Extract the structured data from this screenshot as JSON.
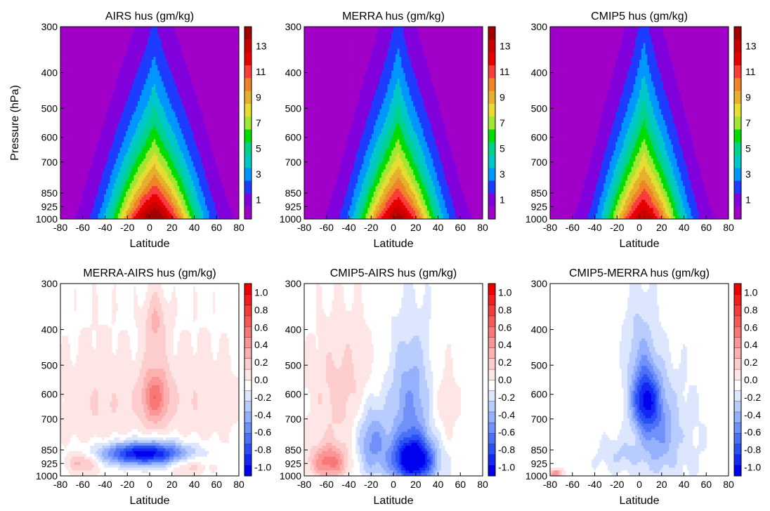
{
  "figure": {
    "y_axis_label": "Pressure (hPa)",
    "x_axis_label": "Latitude"
  },
  "chart_data": [
    {
      "type": "heatmap",
      "title": "AIRS hus (gm/kg)",
      "xlabel": "Latitude",
      "ylabel": "Pressure (hPa)",
      "xlim": [
        -80,
        80
      ],
      "ylim": [
        1000,
        300
      ],
      "x_ticks": [
        -80,
        -60,
        -40,
        -20,
        0,
        20,
        40,
        60,
        80
      ],
      "y_ticks": [
        300,
        400,
        500,
        600,
        700,
        850,
        925,
        1000
      ],
      "colorbar": {
        "ticks": [
          "1",
          "3",
          "5",
          "7",
          "9",
          "11",
          "13"
        ],
        "range": [
          0,
          15
        ]
      },
      "field": {
        "kind": "moisture",
        "peak": 15.5,
        "scale_height": 140,
        "width": 26,
        "height_boost": 0.55
      }
    },
    {
      "type": "heatmap",
      "title": "MERRA hus (gm/kg)",
      "xlabel": "Latitude",
      "ylabel": "",
      "xlim": [
        -80,
        80
      ],
      "ylim": [
        1000,
        300
      ],
      "x_ticks": [
        -80,
        -60,
        -40,
        -20,
        0,
        20,
        40,
        60,
        80
      ],
      "y_ticks": [
        300,
        400,
        500,
        600,
        700,
        850,
        925,
        1000
      ],
      "colorbar": {
        "ticks": [
          "1",
          "3",
          "5",
          "7",
          "9",
          "11",
          "13"
        ],
        "range": [
          0,
          15
        ]
      },
      "field": {
        "kind": "moisture",
        "peak": 14.6,
        "scale_height": 150,
        "width": 24,
        "height_boost": 0.65
      }
    },
    {
      "type": "heatmap",
      "title": "CMIP5 hus (gm/kg)",
      "xlabel": "Latitude",
      "ylabel": "",
      "xlim": [
        -80,
        80
      ],
      "ylim": [
        1000,
        300
      ],
      "x_ticks": [
        -80,
        -60,
        -40,
        -20,
        0,
        20,
        40,
        60,
        80
      ],
      "y_ticks": [
        300,
        400,
        500,
        600,
        700,
        850,
        925,
        1000
      ],
      "colorbar": {
        "ticks": [
          "1",
          "3",
          "5",
          "7",
          "9",
          "11",
          "13"
        ],
        "range": [
          0,
          15
        ]
      },
      "field": {
        "kind": "moisture",
        "peak": 14.2,
        "scale_height": 150,
        "width": 23,
        "height_boost": 0.7
      }
    },
    {
      "type": "heatmap",
      "title": "MERRA-AIRS hus (gm/kg)",
      "xlabel": "Latitude",
      "ylabel": "",
      "xlim": [
        -80,
        80
      ],
      "ylim": [
        1000,
        300
      ],
      "x_ticks": [
        -80,
        -60,
        -40,
        -20,
        0,
        20,
        40,
        60,
        80
      ],
      "y_ticks": [
        300,
        400,
        500,
        600,
        700,
        850,
        925,
        1000
      ],
      "colorbar": {
        "ticks": [
          "1.0",
          "0.8",
          "0.6",
          "0.4",
          "0.2",
          "0.0",
          "-0.2",
          "-0.4",
          "-0.6",
          "-0.8",
          "-1.0"
        ],
        "range": [
          -1.1,
          1.1
        ]
      },
      "field": {
        "kind": "diff",
        "blobs": [
          {
            "lat": -5,
            "p": 870,
            "slat": 28,
            "sp": 45,
            "a": -1.05
          },
          {
            "lat": 5,
            "p": 610,
            "slat": 9,
            "sp": 80,
            "a": 0.55
          },
          {
            "lat": 5,
            "p": 380,
            "slat": 7,
            "sp": 50,
            "a": 0.3
          },
          {
            "lat": -45,
            "p": 650,
            "slat": 30,
            "sp": 180,
            "a": 0.18
          },
          {
            "lat": 45,
            "p": 620,
            "slat": 28,
            "sp": 160,
            "a": 0.16
          },
          {
            "lat": -60,
            "p": 920,
            "slat": 10,
            "sp": 40,
            "a": 0.35
          },
          {
            "lat": 35,
            "p": 940,
            "slat": 12,
            "sp": 40,
            "a": 0.25
          }
        ]
      }
    },
    {
      "type": "heatmap",
      "title": "CMIP5-AIRS hus (gm/kg)",
      "xlabel": "Latitude",
      "ylabel": "",
      "xlim": [
        -80,
        80
      ],
      "ylim": [
        1000,
        300
      ],
      "x_ticks": [
        -80,
        -60,
        -40,
        -20,
        0,
        20,
        40,
        60,
        80
      ],
      "y_ticks": [
        300,
        400,
        500,
        600,
        700,
        850,
        925,
        1000
      ],
      "colorbar": {
        "ticks": [
          "1.0",
          "0.8",
          "0.6",
          "0.4",
          "0.2",
          "0.0",
          "-0.2",
          "-0.4",
          "-0.6",
          "-0.8",
          "-1.0"
        ],
        "range": [
          -1.1,
          1.1
        ]
      },
      "field": {
        "kind": "diff",
        "blobs": [
          {
            "lat": 18,
            "p": 910,
            "slat": 14,
            "sp": 90,
            "a": -1.1
          },
          {
            "lat": 15,
            "p": 650,
            "slat": 14,
            "sp": 180,
            "a": -0.45
          },
          {
            "lat": -20,
            "p": 800,
            "slat": 10,
            "sp": 130,
            "a": -0.5
          },
          {
            "lat": -58,
            "p": 920,
            "slat": 12,
            "sp": 70,
            "a": 0.6
          },
          {
            "lat": -45,
            "p": 600,
            "slat": 22,
            "sp": 170,
            "a": 0.25
          },
          {
            "lat": 45,
            "p": 650,
            "slat": 10,
            "sp": 140,
            "a": 0.15
          }
        ]
      }
    },
    {
      "type": "heatmap",
      "title": "CMIP5-MERRA hus (gm/kg)",
      "xlabel": "Latitude",
      "ylabel": "",
      "xlim": [
        -80,
        80
      ],
      "ylim": [
        1000,
        300
      ],
      "x_ticks": [
        -80,
        -60,
        -40,
        -20,
        0,
        20,
        40,
        60,
        80
      ],
      "y_ticks": [
        300,
        400,
        500,
        600,
        700,
        850,
        925,
        1000
      ],
      "colorbar": {
        "ticks": [
          "1.0",
          "0.8",
          "0.6",
          "0.4",
          "0.2",
          "0.0",
          "-0.2",
          "-0.4",
          "-0.6",
          "-0.8",
          "-1.0"
        ],
        "range": [
          -1.1,
          1.1
        ]
      },
      "field": {
        "kind": "diff",
        "blobs": [
          {
            "lat": 5,
            "p": 620,
            "slat": 9,
            "sp": 90,
            "a": -0.85
          },
          {
            "lat": 18,
            "p": 760,
            "slat": 12,
            "sp": 160,
            "a": -0.4
          },
          {
            "lat": 0,
            "p": 420,
            "slat": 10,
            "sp": 90,
            "a": -0.2
          },
          {
            "lat": -15,
            "p": 880,
            "slat": 15,
            "sp": 70,
            "a": -0.2
          },
          {
            "lat": -75,
            "p": 985,
            "slat": 4,
            "sp": 18,
            "a": 0.6
          },
          {
            "lat": 45,
            "p": 800,
            "slat": 14,
            "sp": 220,
            "a": -0.08
          }
        ]
      }
    }
  ],
  "colors": {
    "moisture": [
      "#a000c8",
      "#8200dc",
      "#1e3cff",
      "#0096ff",
      "#00c8c8",
      "#00d28c",
      "#00dc00",
      "#a0e632",
      "#e6dc32",
      "#e6af2d",
      "#f08228",
      "#fa3c3c",
      "#e60000",
      "#c80000",
      "#a00000"
    ],
    "diff": [
      "#0000f0",
      "#1428f5",
      "#2850f5",
      "#4c70f8",
      "#7090fa",
      "#95b0fc",
      "#b8cdfd",
      "#dce6fe",
      "#ffffff",
      "#fee6e6",
      "#fdcdcd",
      "#fcb0b0",
      "#fa9595",
      "#f87878",
      "#f55a5a",
      "#f53c3c",
      "#f51e1e",
      "#f00000"
    ]
  }
}
